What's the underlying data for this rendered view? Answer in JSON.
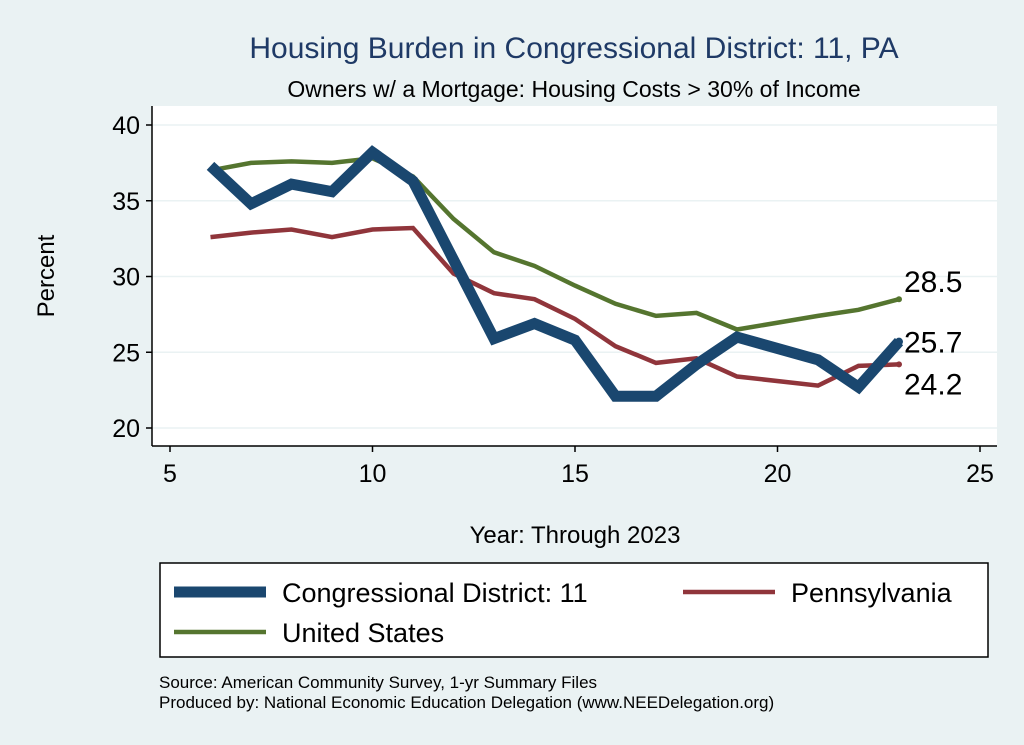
{
  "chart_data": {
    "type": "line",
    "title": "Housing Burden in Congressional District:  11, PA",
    "subtitle": "Owners w/ a Mortgage: Housing Costs > 30% of Income",
    "xlabel": "Year: Through 2023",
    "ylabel": "Percent",
    "xlim": [
      5,
      25
    ],
    "ylim": [
      20,
      40
    ],
    "xticks": [
      5,
      10,
      15,
      20,
      25
    ],
    "yticks": [
      20,
      25,
      30,
      35,
      40
    ],
    "grid": true,
    "legend_position": "bottom",
    "series": [
      {
        "name": "Congressional District:  11",
        "color": "#1a476f",
        "x": [
          6,
          7,
          8,
          9,
          10,
          11,
          12,
          13,
          14,
          15,
          16,
          17,
          18,
          19,
          21,
          22,
          23
        ],
        "values": [
          37.3,
          34.8,
          36.1,
          35.6,
          38.2,
          36.3,
          31.1,
          25.9,
          26.9,
          25.8,
          22.1,
          22.1,
          24.2,
          26.0,
          24.5,
          22.7,
          25.7
        ],
        "end_label": "25.7"
      },
      {
        "name": "Pennsylvania",
        "color": "#90353b",
        "x": [
          6,
          7,
          8,
          9,
          10,
          11,
          12,
          13,
          14,
          15,
          16,
          17,
          18,
          19,
          21,
          22,
          23
        ],
        "values": [
          32.6,
          32.9,
          33.1,
          32.6,
          33.1,
          33.2,
          30.2,
          28.9,
          28.5,
          27.2,
          25.4,
          24.3,
          24.6,
          23.4,
          22.8,
          24.1,
          24.2
        ],
        "end_label": "24.2"
      },
      {
        "name": "United States",
        "color": "#55752f",
        "x": [
          6,
          7,
          8,
          9,
          10,
          11,
          12,
          13,
          14,
          15,
          16,
          17,
          18,
          19,
          21,
          22,
          23
        ],
        "values": [
          37.0,
          37.5,
          37.6,
          37.5,
          37.8,
          36.6,
          33.8,
          31.6,
          30.7,
          29.4,
          28.2,
          27.4,
          27.6,
          26.5,
          27.4,
          27.8,
          28.5
        ],
        "end_label": "28.5"
      }
    ],
    "source_line1": "Source: American Community Survey, 1-yr Summary Files",
    "source_line2": "Produced by: National Economic Education Delegation (www.NEEDelegation.org)"
  }
}
